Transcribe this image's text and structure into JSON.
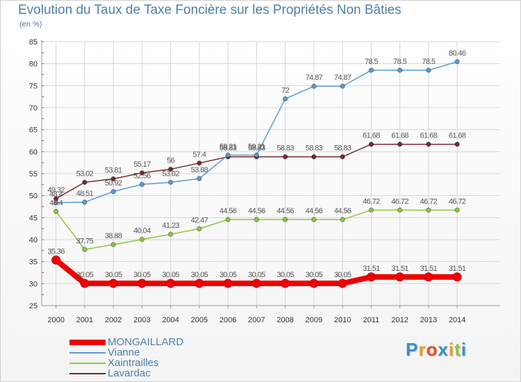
{
  "title": "Evolution du Taux de Taxe Foncière sur les Propriétés Non Bâties",
  "unit_label": "(en %)",
  "logo": {
    "text": "Proxiti",
    "colors": [
      "#3a8fd0",
      "#e8a020",
      "#e85020",
      "#3a8fd0",
      "#e8a020",
      "#8cc63f",
      "#3a8fd0"
    ]
  },
  "chart_data": {
    "type": "line",
    "x": [
      2000,
      2001,
      2002,
      2003,
      2004,
      2005,
      2006,
      2007,
      2008,
      2009,
      2010,
      2011,
      2012,
      2013,
      2014
    ],
    "ylim": [
      25,
      85
    ],
    "yticks": [
      25,
      30,
      35,
      40,
      45,
      50,
      55,
      60,
      65,
      70,
      75,
      80,
      85
    ],
    "grid": true,
    "legend_position": "bottom-left",
    "series": [
      {
        "name": "MONGAILLARD",
        "color": "#ee0000",
        "values": [
          35.36,
          30.05,
          30.05,
          30.05,
          30.05,
          30.05,
          30.05,
          30.05,
          30.05,
          30.05,
          30.05,
          31.51,
          31.51,
          31.51,
          31.51
        ],
        "labels": [
          "35.36",
          "30.05",
          "30.05",
          "30.05",
          "30.05",
          "30.05",
          "30.05",
          "30.05",
          "30.05",
          "30.05",
          "30.05",
          "31.51",
          "31.51",
          "31.51",
          "31.51"
        ]
      },
      {
        "name": "Vianne",
        "color": "#5a9bd0",
        "values": [
          48.4,
          48.51,
          50.92,
          52.56,
          53.02,
          53.88,
          59.21,
          59.21,
          72,
          74.87,
          74.87,
          78.5,
          78.5,
          78.5,
          80.46
        ],
        "labels": [
          "48.4",
          "48.51",
          "50.92",
          "52.56",
          "53.02",
          "53.88",
          "59.21",
          "59.21",
          "72",
          "74.87",
          "74.87",
          "78.5",
          "78.5",
          "78.5",
          "80.46"
        ]
      },
      {
        "name": "Xaintrailles",
        "color": "#8cc63f",
        "values": [
          46.4,
          37.75,
          38.88,
          40.04,
          41.23,
          42.47,
          44.56,
          44.56,
          44.56,
          44.56,
          44.56,
          46.72,
          46.72,
          46.72,
          46.72
        ],
        "labels": [
          "46.4",
          "37.75",
          "38.88",
          "40.04",
          "41.23",
          "42.47",
          "44.56",
          "44.56",
          "44.56",
          "44.56",
          "44.56",
          "46.72",
          "46.72",
          "46.72",
          "46.72"
        ]
      },
      {
        "name": "Lavardac",
        "color": "#7a2a2a",
        "values": [
          49.32,
          53.02,
          53.81,
          55.17,
          56,
          57.4,
          58.83,
          58.83,
          58.83,
          58.83,
          58.83,
          61.68,
          61.68,
          61.68,
          61.68
        ],
        "labels": [
          "49.32",
          "53.02",
          "53.81",
          "55.17",
          "56",
          "57.4",
          "58.83",
          "58.83",
          "58.83",
          "58.83",
          "58.83",
          "61.68",
          "61.68",
          "61.68",
          "61.68"
        ]
      }
    ]
  }
}
